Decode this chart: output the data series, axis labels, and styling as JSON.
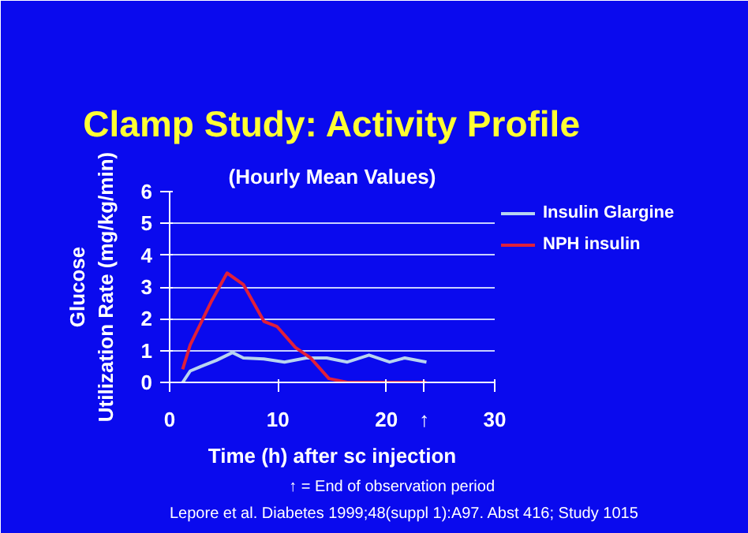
{
  "chart_data": {
    "type": "line",
    "title": "Clamp Study: Activity Profile",
    "subtitle": "(Hourly Mean Values)",
    "xlabel": "Time (h) after sc injection",
    "ylabel": "Glucose\nUtilization Rate (mg/kg/min)",
    "xlim": [
      0,
      30
    ],
    "xticks": [
      0,
      10,
      20,
      30
    ],
    "ylim": [
      0,
      6
    ],
    "yticks": [
      0,
      1,
      2,
      3,
      4,
      5,
      6
    ],
    "grid": "y",
    "legend": "right",
    "line_style": "solid",
    "marker": "none",
    "series": [
      {
        "name": "Insulin Glargine",
        "color": "#b8d4f0",
        "x": [
          1.2,
          1.9,
          3.1,
          4.3,
          5.8,
          6.8,
          8.7,
          10.6,
          12.6,
          14.5,
          16.4,
          18.4,
          20.3,
          21.7,
          23.7
        ],
        "values": [
          0.0,
          0.36,
          0.53,
          0.69,
          0.94,
          0.77,
          0.74,
          0.64,
          0.77,
          0.77,
          0.64,
          0.86,
          0.64,
          0.77,
          0.64
        ]
      },
      {
        "name": "NPH insulin",
        "color": "#e0203a",
        "x": [
          1.2,
          1.9,
          3.9,
          5.3,
          6.8,
          8.7,
          9.9,
          11.6,
          13.0,
          14.7,
          16.4,
          18.4,
          23.7
        ],
        "values": [
          0.41,
          1.18,
          2.58,
          3.44,
          3.08,
          1.92,
          1.76,
          1.1,
          0.77,
          0.12,
          0,
          0,
          0
        ]
      }
    ],
    "annotations": [
      {
        "text": "↑",
        "x": 23.5,
        "y": 0
      },
      "↑ = End of observation period",
      "Lepore et al. Diabetes 1999;48(suppl 1):A97. Abst 416; Study 1015"
    ]
  }
}
